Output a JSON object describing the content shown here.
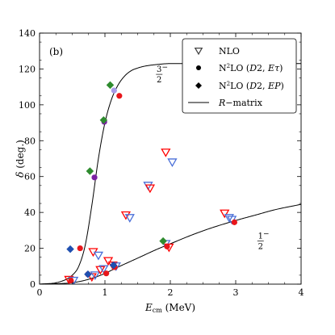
{
  "chart_data": {
    "type": "scatter",
    "panel_label": "(b)",
    "xlabel": "E_cm (MeV)",
    "ylabel": "δ (deg.)",
    "xlim": [
      0,
      4
    ],
    "ylim": [
      0,
      140
    ],
    "xticks": [
      0,
      1,
      2,
      3,
      4
    ],
    "yticks": [
      0,
      20,
      40,
      60,
      80,
      100,
      120,
      140
    ],
    "grid": false,
    "legend_position": "top-right",
    "annotations": [
      {
        "text_num": "3",
        "text_den": "2",
        "sign": "−",
        "x": 1.83,
        "y": 117
      },
      {
        "text_num": "1",
        "text_den": "2",
        "sign": "−",
        "x": 3.38,
        "y": 24
      }
    ],
    "legend": [
      {
        "label": "NLO",
        "marker": "triangle-open"
      },
      {
        "label": "N²LO (D2, Eτ)",
        "marker": "circle"
      },
      {
        "label": "N²LO (D2, EP)",
        "marker": "diamond"
      },
      {
        "label": "R−matrix",
        "marker": "line"
      }
    ],
    "series": [
      {
        "name": "NLO",
        "marker": "triangle-open",
        "points": [
          {
            "x": 0.45,
            "y": 2.5,
            "color": "#ff0000"
          },
          {
            "x": 0.52,
            "y": 2.0,
            "color": "#4a6fd8"
          },
          {
            "x": 0.8,
            "y": 4.0,
            "color": "#ff0000"
          },
          {
            "x": 0.85,
            "y": 5.0,
            "color": "#4a6fd8"
          },
          {
            "x": 0.82,
            "y": 18.0,
            "color": "#ff0000"
          },
          {
            "x": 0.9,
            "y": 16.0,
            "color": "#4a6fd8"
          },
          {
            "x": 0.93,
            "y": 8.0,
            "color": "#ff0000"
          },
          {
            "x": 0.98,
            "y": 8.5,
            "color": "#4a6fd8"
          },
          {
            "x": 1.05,
            "y": 13.0,
            "color": "#ff0000"
          },
          {
            "x": 1.12,
            "y": 10.5,
            "color": "#ff0000"
          },
          {
            "x": 1.17,
            "y": 10.0,
            "color": "#4a6fd8"
          },
          {
            "x": 1.32,
            "y": 38.5,
            "color": "#ff0000"
          },
          {
            "x": 1.38,
            "y": 37.0,
            "color": "#4a6fd8"
          },
          {
            "x": 1.66,
            "y": 55.0,
            "color": "#4a6fd8"
          },
          {
            "x": 1.69,
            "y": 53.5,
            "color": "#ff0000"
          },
          {
            "x": 1.93,
            "y": 73.5,
            "color": "#ff0000"
          },
          {
            "x": 2.03,
            "y": 68.0,
            "color": "#4a6fd8"
          },
          {
            "x": 1.93,
            "y": 22.5,
            "color": "#4a6fd8"
          },
          {
            "x": 1.98,
            "y": 20.5,
            "color": "#ff0000"
          },
          {
            "x": 2.83,
            "y": 39.5,
            "color": "#ff0000"
          },
          {
            "x": 2.9,
            "y": 37.0,
            "color": "#4a6fd8"
          },
          {
            "x": 2.94,
            "y": 36.0,
            "color": "#4a6fd8"
          }
        ]
      },
      {
        "name": "N²LO (D2, Eτ)",
        "marker": "circle",
        "points": [
          {
            "x": 0.48,
            "y": 2.0,
            "color": "#e8161b"
          },
          {
            "x": 0.62,
            "y": 20.0,
            "color": "#e8161b"
          },
          {
            "x": 0.74,
            "y": 5.5,
            "color": "#e8161b"
          },
          {
            "x": 0.84,
            "y": 59.5,
            "color": "#7a1fa2"
          },
          {
            "x": 0.99,
            "y": 90.5,
            "color": "#7a1fa2"
          },
          {
            "x": 1.02,
            "y": 6.0,
            "color": "#e8161b"
          },
          {
            "x": 1.14,
            "y": 108.0,
            "color": "#a89be8"
          },
          {
            "x": 1.15,
            "y": 9.5,
            "color": "#e8161b"
          },
          {
            "x": 1.22,
            "y": 105.0,
            "color": "#e8161b"
          },
          {
            "x": 1.95,
            "y": 21.0,
            "color": "#e8161b"
          },
          {
            "x": 2.98,
            "y": 34.5,
            "color": "#e8161b"
          }
        ]
      },
      {
        "name": "N²LO (D2, EP)",
        "marker": "diamond",
        "points": [
          {
            "x": 0.47,
            "y": 19.5,
            "color": "#1f4fb0"
          },
          {
            "x": 0.74,
            "y": 5.5,
            "color": "#1f4fb0"
          },
          {
            "x": 0.77,
            "y": 63.0,
            "color": "#2e8b2e"
          },
          {
            "x": 0.98,
            "y": 91.5,
            "color": "#2e8b2e"
          },
          {
            "x": 1.08,
            "y": 111.0,
            "color": "#2e8b2e"
          },
          {
            "x": 1.13,
            "y": 10.5,
            "color": "#1f4fb0"
          },
          {
            "x": 1.89,
            "y": 24.0,
            "color": "#2e8b2e"
          }
        ]
      }
    ],
    "rmatrix_curves": [
      {
        "label_ref": "3/2−",
        "x": [
          0,
          0.3,
          0.5,
          0.6,
          0.7,
          0.8,
          0.9,
          1.0,
          1.1,
          1.2,
          1.3,
          1.4,
          1.5,
          1.6,
          1.8,
          2.0,
          2.3,
          2.6,
          3.0,
          3.5,
          4.0
        ],
        "y": [
          0,
          1.2,
          5,
          10,
          22,
          44,
          70,
          90,
          103,
          111,
          116,
          119,
          120.5,
          121.5,
          122.5,
          123,
          123,
          123,
          123,
          123,
          123
        ]
      },
      {
        "label_ref": "1/2−",
        "x": [
          0,
          0.3,
          0.5,
          0.7,
          0.9,
          1.0,
          1.2,
          1.5,
          1.8,
          2.0,
          2.3,
          2.6,
          3.0,
          3.3,
          3.6,
          4.0
        ],
        "y": [
          0,
          0.3,
          0.8,
          2.2,
          4.5,
          6.0,
          9.5,
          14.5,
          19.5,
          22.5,
          27,
          31,
          35.5,
          38.5,
          41.5,
          44.5
        ]
      }
    ]
  }
}
